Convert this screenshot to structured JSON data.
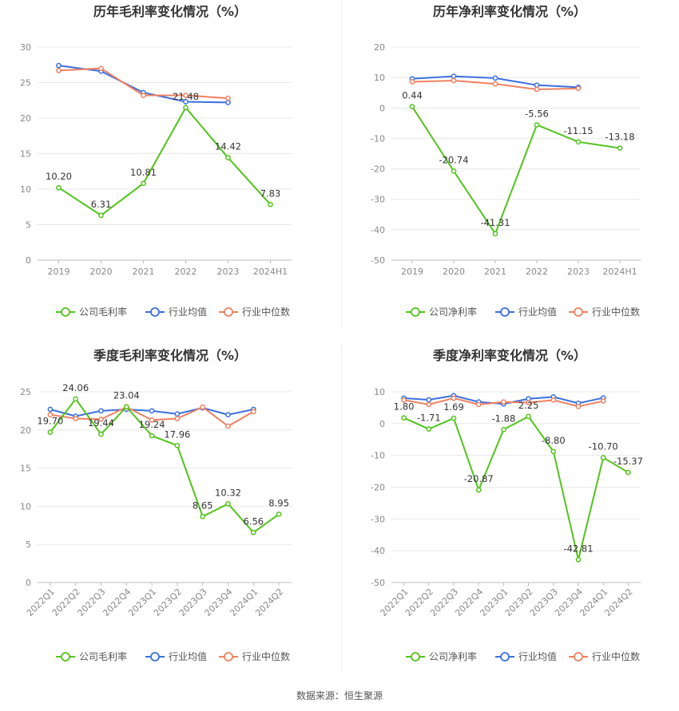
{
  "source_note": "数据来源：恒生聚源",
  "legend_labels": {
    "industry_avg": "行业均值",
    "industry_median": "行业中位数"
  },
  "colors": {
    "company": "#52c41a",
    "industry_avg": "#3b6fe0",
    "industry_median": "#f08060",
    "axis_text": "#888888",
    "grid": "#e8e8e8",
    "title": "#333333"
  },
  "chart_data": [
    {
      "type": "line",
      "title": "历年毛利率变化情况（%）",
      "categories": [
        "2019",
        "2020",
        "2021",
        "2022",
        "2023",
        "2024H1"
      ],
      "ylim": [
        0,
        30
      ],
      "yticks": [
        0,
        5,
        10,
        15,
        20,
        25,
        30
      ],
      "rotate_x": false,
      "series": [
        {
          "key": "company",
          "name": "公司毛利率",
          "values": [
            10.2,
            6.31,
            10.81,
            21.48,
            14.42,
            7.83
          ],
          "labels": [
            "10.20",
            "6.31",
            "10.81",
            "21.48",
            "14.42",
            "7.83"
          ]
        },
        {
          "key": "industry_avg",
          "name": "行业均值",
          "values": [
            27.4,
            26.6,
            23.6,
            22.3,
            22.2,
            null
          ]
        },
        {
          "key": "industry_median",
          "name": "行业中位数",
          "values": [
            26.7,
            27.0,
            23.2,
            23.2,
            22.8,
            null
          ]
        }
      ]
    },
    {
      "type": "line",
      "title": "历年净利率变化情况（%）",
      "categories": [
        "2019",
        "2020",
        "2021",
        "2022",
        "2023",
        "2024H1"
      ],
      "ylim": [
        -50,
        20
      ],
      "yticks": [
        -50,
        -40,
        -30,
        -20,
        -10,
        0,
        10,
        20
      ],
      "rotate_x": false,
      "series": [
        {
          "key": "company",
          "name": "公司净利率",
          "values": [
            0.44,
            -20.74,
            -41.31,
            -5.56,
            -11.15,
            -13.18
          ],
          "labels": [
            "0.44",
            "-20.74",
            "-41.31",
            "-5.56",
            "-11.15",
            "-13.18"
          ]
        },
        {
          "key": "industry_avg",
          "name": "行业均值",
          "values": [
            9.6,
            10.4,
            9.8,
            7.5,
            6.8,
            null
          ]
        },
        {
          "key": "industry_median",
          "name": "行业中位数",
          "values": [
            8.6,
            9.0,
            7.9,
            6.1,
            6.4,
            null
          ]
        }
      ]
    },
    {
      "type": "line",
      "title": "季度毛利率变化情况（%）",
      "categories": [
        "2022Q1",
        "2022Q2",
        "2022Q3",
        "2022Q4",
        "2023Q1",
        "2023Q2",
        "2023Q3",
        "2023Q4",
        "2024Q1",
        "2024Q2"
      ],
      "ylim": [
        0,
        25
      ],
      "yticks": [
        0,
        5,
        10,
        15,
        20,
        25
      ],
      "rotate_x": true,
      "series": [
        {
          "key": "company",
          "name": "公司毛利率",
          "values": [
            19.7,
            24.06,
            19.44,
            23.04,
            19.24,
            17.96,
            8.65,
            10.32,
            6.56,
            8.95
          ],
          "labels": [
            "19.70",
            "24.06",
            "19.44",
            "23.04",
            "19.24",
            "17.96",
            "8.65",
            "10.32",
            "6.56",
            "8.95"
          ]
        },
        {
          "key": "industry_avg",
          "name": "行业均值",
          "values": [
            22.7,
            21.8,
            22.5,
            22.7,
            22.5,
            22.1,
            22.9,
            22.0,
            22.7,
            null
          ]
        },
        {
          "key": "industry_median",
          "name": "行业中位数",
          "values": [
            22.0,
            21.5,
            21.4,
            23.0,
            21.3,
            21.5,
            23.0,
            20.5,
            22.4,
            null
          ]
        }
      ]
    },
    {
      "type": "line",
      "title": "季度净利率变化情况（%）",
      "categories": [
        "2022Q1",
        "2022Q2",
        "2022Q3",
        "2022Q4",
        "2023Q1",
        "2023Q2",
        "2023Q3",
        "2023Q4",
        "2024Q1",
        "2024Q2"
      ],
      "ylim": [
        -50,
        10
      ],
      "yticks": [
        -50,
        -40,
        -30,
        -20,
        -10,
        0,
        10
      ],
      "rotate_x": true,
      "series": [
        {
          "key": "company",
          "name": "公司净利率",
          "values": [
            1.8,
            -1.71,
            1.69,
            -20.87,
            -1.88,
            2.25,
            -8.8,
            -42.81,
            -10.7,
            -15.37
          ],
          "labels": [
            "1.80",
            "-1.71",
            "1.69",
            "-20.87",
            "-1.88",
            "2.25",
            "-8.80",
            "-42.81",
            "-10.70",
            "-15.37"
          ]
        },
        {
          "key": "industry_avg",
          "name": "行业均值",
          "values": [
            8.0,
            7.5,
            8.8,
            6.8,
            6.2,
            7.8,
            8.4,
            6.4,
            8.1,
            null
          ]
        },
        {
          "key": "industry_median",
          "name": "行业中位数",
          "values": [
            7.4,
            6.0,
            8.0,
            6.0,
            6.8,
            6.6,
            7.4,
            5.4,
            7.1,
            null
          ]
        }
      ]
    }
  ]
}
